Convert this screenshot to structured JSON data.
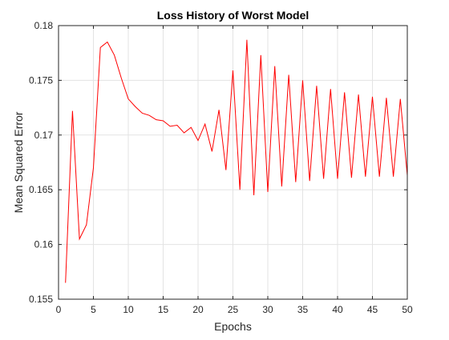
{
  "chart_data": {
    "type": "line",
    "title": "Loss History of Worst Model",
    "xlabel": "Epochs",
    "ylabel": "Mean Squared Error",
    "xlim": [
      0,
      50
    ],
    "ylim": [
      0.155,
      0.18
    ],
    "grid": true,
    "x_ticks": [
      "0",
      "5",
      "10",
      "15",
      "20",
      "25",
      "30",
      "35",
      "40",
      "45",
      "50"
    ],
    "y_ticks": [
      "0.155",
      "0.16",
      "0.165",
      "0.17",
      "0.175",
      "0.18"
    ],
    "series": [
      {
        "color": "#ff0000",
        "x": [
          1,
          2,
          3,
          4,
          5,
          6,
          7,
          8,
          9,
          10,
          11,
          12,
          13,
          14,
          15,
          16,
          17,
          18,
          19,
          20,
          21,
          22,
          23,
          24,
          25,
          26,
          27,
          28,
          29,
          30,
          31,
          32,
          33,
          34,
          35,
          36,
          37,
          38,
          39,
          40,
          41,
          42,
          43,
          44,
          45,
          46,
          47,
          48,
          49,
          50
        ],
        "y": [
          0.1565,
          0.1722,
          0.1605,
          0.1618,
          0.167,
          0.178,
          0.1785,
          0.1773,
          0.1752,
          0.1733,
          0.1726,
          0.172,
          0.1718,
          0.1714,
          0.1713,
          0.1708,
          0.1709,
          0.1702,
          0.1707,
          0.1695,
          0.171,
          0.1685,
          0.1723,
          0.1668,
          0.1759,
          0.165,
          0.1787,
          0.1645,
          0.1773,
          0.1648,
          0.1763,
          0.1653,
          0.1755,
          0.1657,
          0.175,
          0.1658,
          0.1745,
          0.166,
          0.1742,
          0.166,
          0.1739,
          0.1661,
          0.1737,
          0.1662,
          0.1735,
          0.1662,
          0.1734,
          0.1662,
          0.1733,
          0.1663
        ]
      }
    ]
  }
}
